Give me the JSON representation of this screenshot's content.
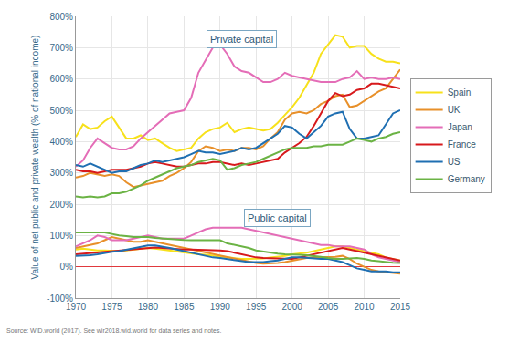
{
  "chart_data": {
    "type": "line",
    "y_label": "Value of net public and private wealth (% of national income)",
    "source": "Source: WID.world (2017). See wir2018.wid.world for data series and notes.",
    "annotations": [
      {
        "text": "Private capital",
        "x": 1993,
        "y": 728
      },
      {
        "text": "Public capital",
        "x": 1998,
        "y": 155
      }
    ],
    "x": [
      1970,
      1971,
      1972,
      1973,
      1974,
      1975,
      1976,
      1977,
      1978,
      1979,
      1980,
      1981,
      1982,
      1983,
      1984,
      1985,
      1986,
      1987,
      1988,
      1989,
      1990,
      1991,
      1992,
      1993,
      1994,
      1995,
      1996,
      1997,
      1998,
      1999,
      2000,
      2001,
      2002,
      2003,
      2004,
      2005,
      2006,
      2007,
      2008,
      2009,
      2010,
      2011,
      2012,
      2013,
      2014,
      2015
    ],
    "xlim": [
      1970,
      2015
    ],
    "xticks": [
      1970,
      1975,
      1980,
      1985,
      1990,
      1995,
      2000,
      2005,
      2010,
      2015
    ],
    "ylim": [
      -100,
      800
    ],
    "yticks": [
      {
        "value": -100,
        "label": "-100%"
      },
      {
        "value": 0,
        "label": "0%"
      },
      {
        "value": 100,
        "label": "100%"
      },
      {
        "value": 200,
        "label": "200%"
      },
      {
        "value": 300,
        "label": "300%"
      },
      {
        "value": 400,
        "label": "400%"
      },
      {
        "value": 500,
        "label": "500%"
      },
      {
        "value": 600,
        "label": "600%"
      },
      {
        "value": 700,
        "label": "700%"
      },
      {
        "value": 800,
        "label": "800%"
      }
    ],
    "grid": true,
    "legend": "right",
    "series": [
      {
        "name": "Spain",
        "color": "#f7e11b",
        "values": [
          415,
          455,
          440,
          445,
          465,
          480,
          445,
          410,
          410,
          420,
          405,
          410,
          395,
          380,
          370,
          375,
          380,
          410,
          430,
          440,
          445,
          460,
          430,
          440,
          445,
          440,
          435,
          440,
          460,
          485,
          510,
          540,
          580,
          620,
          680,
          710,
          740,
          735,
          700,
          705,
          705,
          680,
          665,
          655,
          655,
          650
        ]
      },
      {
        "name": "UK",
        "color": "#e8902a",
        "values": [
          285,
          290,
          300,
          295,
          290,
          295,
          290,
          270,
          255,
          260,
          265,
          270,
          275,
          290,
          300,
          315,
          335,
          370,
          385,
          380,
          370,
          375,
          370,
          380,
          380,
          375,
          385,
          410,
          430,
          470,
          490,
          495,
          490,
          500,
          520,
          530,
          545,
          550,
          510,
          515,
          530,
          545,
          560,
          570,
          600,
          630
        ]
      },
      {
        "name": "Japan",
        "color": "#e46db7",
        "values": [
          320,
          340,
          380,
          410,
          395,
          380,
          375,
          375,
          385,
          410,
          430,
          450,
          470,
          490,
          495,
          500,
          540,
          620,
          660,
          700,
          710,
          680,
          640,
          625,
          620,
          605,
          590,
          590,
          600,
          620,
          610,
          605,
          600,
          595,
          590,
          590,
          590,
          600,
          605,
          625,
          600,
          605,
          600,
          600,
          605,
          600
        ]
      },
      {
        "name": "France",
        "color": "#d7191c",
        "values": [
          310,
          305,
          305,
          300,
          305,
          310,
          310,
          310,
          315,
          320,
          330,
          335,
          330,
          325,
          320,
          320,
          325,
          330,
          330,
          335,
          335,
          330,
          325,
          330,
          325,
          330,
          335,
          340,
          345,
          365,
          380,
          395,
          415,
          450,
          490,
          530,
          555,
          545,
          550,
          565,
          570,
          585,
          585,
          580,
          575,
          570
        ]
      },
      {
        "name": "US",
        "color": "#1f6fb2",
        "values": [
          325,
          320,
          330,
          320,
          310,
          300,
          305,
          305,
          315,
          325,
          330,
          340,
          335,
          340,
          345,
          350,
          360,
          370,
          365,
          365,
          360,
          365,
          370,
          380,
          375,
          380,
          395,
          410,
          425,
          450,
          445,
          425,
          410,
          430,
          450,
          480,
          490,
          495,
          440,
          410,
          410,
          415,
          420,
          455,
          490,
          500
        ]
      },
      {
        "name": "Germany",
        "color": "#6bb344",
        "values": [
          225,
          222,
          225,
          222,
          225,
          235,
          235,
          240,
          250,
          260,
          275,
          285,
          295,
          305,
          315,
          320,
          325,
          335,
          340,
          345,
          340,
          310,
          315,
          325,
          330,
          335,
          345,
          355,
          365,
          375,
          380,
          380,
          380,
          385,
          385,
          390,
          390,
          390,
          400,
          410,
          405,
          400,
          410,
          415,
          425,
          430
        ]
      },
      {
        "name": "Spain",
        "color": "#f7e11b",
        "values": [
          55,
          58,
          55,
          52,
          52,
          50,
          50,
          52,
          55,
          58,
          60,
          58,
          55,
          50,
          47,
          45,
          42,
          40,
          38,
          35,
          33,
          30,
          28,
          25,
          25,
          25,
          27,
          30,
          32,
          35,
          40,
          42,
          45,
          50,
          55,
          60,
          65,
          65,
          60,
          55,
          50,
          45,
          40,
          30,
          25,
          20
        ]
      },
      {
        "name": "UK",
        "color": "#e8902a",
        "values": [
          60,
          65,
          70,
          75,
          85,
          95,
          90,
          85,
          80,
          80,
          85,
          80,
          75,
          70,
          65,
          60,
          55,
          50,
          45,
          40,
          35,
          30,
          25,
          20,
          15,
          12,
          10,
          10,
          12,
          15,
          20,
          25,
          28,
          30,
          30,
          30,
          32,
          35,
          25,
          10,
          0,
          -10,
          -15,
          -18,
          -20,
          -22
        ]
      },
      {
        "name": "Japan",
        "color": "#e46db7",
        "values": [
          65,
          75,
          85,
          100,
          95,
          85,
          85,
          85,
          90,
          95,
          100,
          95,
          90,
          90,
          90,
          90,
          100,
          110,
          120,
          125,
          125,
          125,
          125,
          125,
          120,
          115,
          110,
          105,
          100,
          95,
          90,
          85,
          80,
          75,
          70,
          70,
          65,
          65,
          65,
          60,
          55,
          40,
          30,
          25,
          20,
          15
        ]
      },
      {
        "name": "France",
        "color": "#d7191c",
        "values": [
          40,
          42,
          45,
          48,
          50,
          50,
          52,
          55,
          57,
          60,
          62,
          62,
          60,
          58,
          57,
          55,
          55,
          55,
          54,
          53,
          52,
          50,
          45,
          40,
          35,
          30,
          28,
          27,
          25,
          25,
          25,
          30,
          35,
          40,
          45,
          50,
          55,
          60,
          55,
          50,
          45,
          40,
          35,
          30,
          25,
          20
        ]
      },
      {
        "name": "US",
        "color": "#1f6fb2",
        "values": [
          35,
          35,
          37,
          40,
          45,
          48,
          50,
          55,
          60,
          65,
          68,
          68,
          65,
          60,
          55,
          50,
          45,
          40,
          35,
          30,
          28,
          25,
          20,
          18,
          15,
          15,
          15,
          18,
          20,
          25,
          30,
          30,
          28,
          25,
          25,
          25,
          20,
          15,
          5,
          -5,
          -10,
          -15,
          -15,
          -15,
          -18,
          -18
        ]
      },
      {
        "name": "Germany",
        "color": "#6bb344",
        "values": [
          110,
          110,
          110,
          110,
          110,
          105,
          100,
          98,
          95,
          95,
          95,
          92,
          90,
          88,
          87,
          86,
          85,
          85,
          84,
          84,
          85,
          75,
          70,
          65,
          60,
          52,
          48,
          45,
          42,
          40,
          38,
          38,
          37,
          35,
          32,
          28,
          25,
          25,
          27,
          28,
          25,
          20,
          18,
          15,
          13,
          12
        ]
      }
    ]
  }
}
